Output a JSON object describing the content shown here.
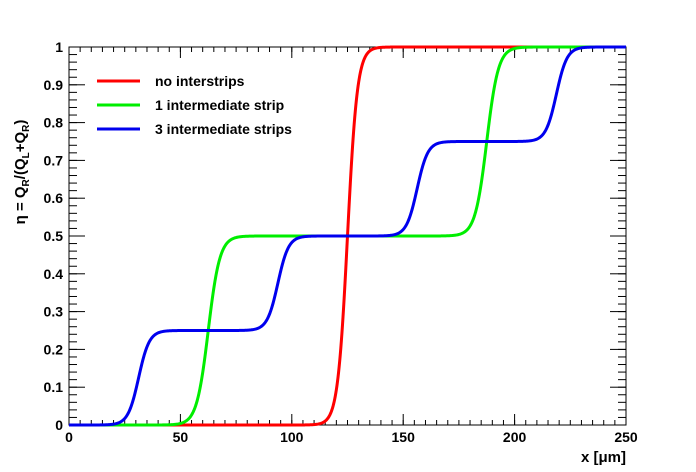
{
  "chart_data": {
    "type": "line",
    "title": "",
    "xlabel": "x [μm]",
    "ylabel": "η = Q_R/(Q_L+Q_R)",
    "ylabel_parts": {
      "eta": "η = Q",
      "sub_r": "R",
      "mid": "/(Q",
      "sub_l": "L",
      "plus": "+Q",
      "sub_r2": "R",
      "close": ")"
    },
    "xlim": [
      0,
      250
    ],
    "ylim": [
      0,
      1
    ],
    "x_ticks": [
      "0",
      "50",
      "100",
      "150",
      "200",
      "250"
    ],
    "x_tick_values": [
      0,
      50,
      100,
      150,
      200,
      250
    ],
    "y_ticks": [
      "0",
      "0.1",
      "0.2",
      "0.3",
      "0.4",
      "0.5",
      "0.6",
      "0.7",
      "0.8",
      "0.9",
      "1"
    ],
    "y_tick_values": [
      0,
      0.1,
      0.2,
      0.3,
      0.4,
      0.5,
      0.6,
      0.7,
      0.8,
      0.9,
      1
    ],
    "grid": false,
    "legend_position": "top-left",
    "series": [
      {
        "name": "no interstrips",
        "color": "#ff0000",
        "steps": [
          {
            "center": 125,
            "width": 2.2,
            "height": 1.0
          }
        ]
      },
      {
        "name": "1 intermediate strip",
        "color": "#00ee00",
        "steps": [
          {
            "center": 62.5,
            "width": 2.6,
            "height": 0.5
          },
          {
            "center": 187.5,
            "width": 2.6,
            "height": 0.5
          }
        ]
      },
      {
        "name": "3 intermediate strips",
        "color": "#0000ee",
        "steps": [
          {
            "center": 31.25,
            "width": 2.4,
            "height": 0.25
          },
          {
            "center": 93.75,
            "width": 2.4,
            "height": 0.25
          },
          {
            "center": 156.25,
            "width": 2.4,
            "height": 0.25
          },
          {
            "center": 218.75,
            "width": 2.4,
            "height": 0.25
          }
        ]
      }
    ]
  }
}
